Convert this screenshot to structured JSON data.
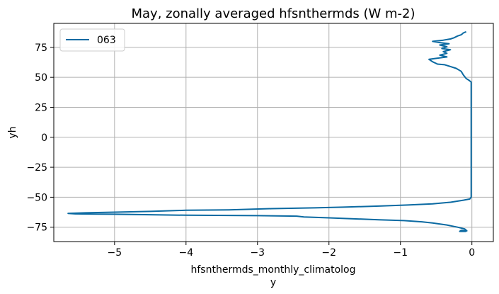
{
  "chart_data": {
    "type": "line",
    "title": "May, zonally averaged hfsnthermds (W m-2)",
    "xlabel_line1": "hfsnthermds_monthly_climatolog",
    "xlabel_line2": "y",
    "ylabel": "yh",
    "xlim": [
      -5.85,
      0.3
    ],
    "ylim": [
      -87,
      95
    ],
    "grid": true,
    "legend_position": "top-left",
    "x_ticks": [
      {
        "value": -5,
        "label": "−5"
      },
      {
        "value": -4,
        "label": "−4"
      },
      {
        "value": -3,
        "label": "−3"
      },
      {
        "value": -2,
        "label": "−2"
      },
      {
        "value": -1,
        "label": "−1"
      },
      {
        "value": 0,
        "label": "0"
      }
    ],
    "y_ticks": [
      {
        "value": 75,
        "label": "75"
      },
      {
        "value": 50,
        "label": "50"
      },
      {
        "value": 25,
        "label": "25"
      },
      {
        "value": 0,
        "label": "0"
      },
      {
        "value": -25,
        "label": "−25"
      },
      {
        "value": -50,
        "label": "−50"
      },
      {
        "value": -75,
        "label": "−75"
      }
    ],
    "series": [
      {
        "name": "063",
        "color": "#0b6aa2",
        "points": [
          [
            -0.08,
            -78.5
          ],
          [
            -0.17,
            -78.5
          ],
          [
            -0.15,
            -77.6
          ],
          [
            -0.07,
            -78.1
          ],
          [
            -0.1,
            -76.5
          ],
          [
            -0.2,
            -75.0
          ],
          [
            -0.35,
            -73.2
          ],
          [
            -0.55,
            -71.5
          ],
          [
            -0.7,
            -70.5
          ],
          [
            -0.95,
            -69.5
          ],
          [
            -1.3,
            -68.8
          ],
          [
            -2.0,
            -67.2
          ],
          [
            -2.35,
            -66.5
          ],
          [
            -2.45,
            -65.8
          ],
          [
            -3.0,
            -65.4
          ],
          [
            -4.0,
            -65.0
          ],
          [
            -5.0,
            -64.2
          ],
          [
            -5.55,
            -63.9
          ],
          [
            -5.65,
            -63.5
          ],
          [
            -5.4,
            -63.0
          ],
          [
            -5.0,
            -62.5
          ],
          [
            -4.5,
            -61.8
          ],
          [
            -4.0,
            -60.9
          ],
          [
            -3.4,
            -60.5
          ],
          [
            -2.8,
            -59.5
          ],
          [
            -2.2,
            -58.9
          ],
          [
            -1.8,
            -58.3
          ],
          [
            -1.3,
            -57.4
          ],
          [
            -0.9,
            -56.5
          ],
          [
            -0.55,
            -55.5
          ],
          [
            -0.3,
            -54.2
          ],
          [
            -0.12,
            -52.5
          ],
          [
            -0.03,
            -51.5
          ],
          [
            -0.01,
            -50.0
          ],
          [
            -0.01,
            0.0
          ],
          [
            -0.01,
            46.0
          ],
          [
            -0.04,
            47.5
          ],
          [
            -0.08,
            49.0
          ],
          [
            -0.12,
            52.0
          ],
          [
            -0.15,
            55.0
          ],
          [
            -0.22,
            57.5
          ],
          [
            -0.3,
            59.0
          ],
          [
            -0.38,
            60.5
          ],
          [
            -0.48,
            61.0
          ],
          [
            -0.55,
            63.0
          ],
          [
            -0.6,
            65.0
          ],
          [
            -0.48,
            66.0
          ],
          [
            -0.35,
            67.0
          ],
          [
            -0.45,
            68.5
          ],
          [
            -0.35,
            70.0
          ],
          [
            -0.4,
            71.5
          ],
          [
            -0.3,
            73.0
          ],
          [
            -0.42,
            74.0
          ],
          [
            -0.35,
            75.5
          ],
          [
            -0.45,
            77.0
          ],
          [
            -0.32,
            78.0
          ],
          [
            -0.45,
            79.0
          ],
          [
            -0.55,
            80.0
          ],
          [
            -0.4,
            81.0
          ],
          [
            -0.3,
            82.0
          ],
          [
            -0.25,
            83.0
          ],
          [
            -0.2,
            84.5
          ],
          [
            -0.15,
            85.5
          ],
          [
            -0.12,
            87.0
          ],
          [
            -0.08,
            88.0
          ]
        ]
      }
    ]
  }
}
